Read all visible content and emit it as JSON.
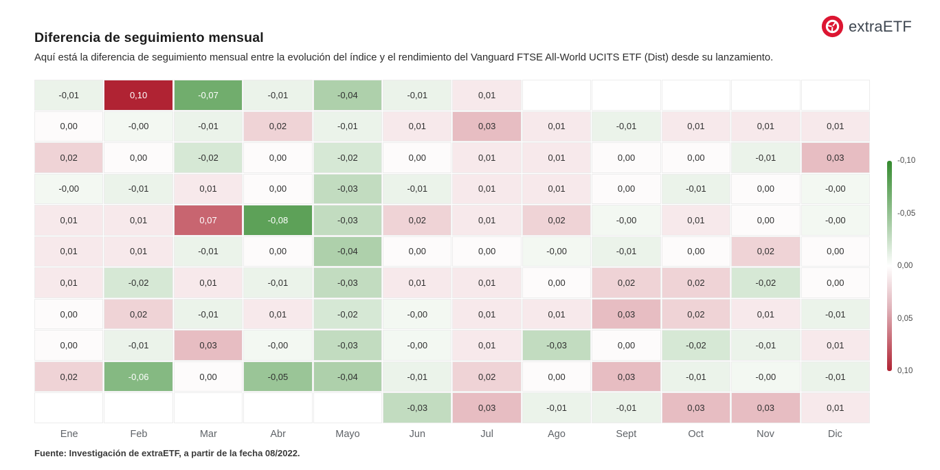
{
  "header": {
    "title": "Diferencia de seguimiento mensual",
    "subtitle": "Aquí está la diferencia de seguimiento mensual entre la evolución del índice y el rendimiento del Vanguard FTSE All-World UCITS ETF (Dist) desde su lanzamiento.",
    "logo_text": "extraETF"
  },
  "footer": {
    "source": "Fuente: Investigación de extraETF, a partir de la fecha 08/2022."
  },
  "colors": {
    "brand_red": "#dc1632",
    "logo_text_color": "#3e4650",
    "cell_border": "#ececec",
    "cell_text": "#2f2f2f",
    "axis_label": "#5f6368"
  },
  "chart_data": {
    "type": "heatmap",
    "title": "Diferencia de seguimiento mensual",
    "xlabel": "",
    "ylabel": "",
    "grid": "on",
    "legend_position": "right",
    "categories_x": [
      "Ene",
      "Feb",
      "Mar",
      "Abr",
      "Mayo",
      "Jun",
      "Jul",
      "Ago",
      "Sept",
      "Oct",
      "Nov",
      "Dic"
    ],
    "rows": [
      [
        "-0,01",
        "0,10",
        "-0,07",
        "-0,01",
        "-0,04",
        "-0,01",
        "0,01",
        null,
        null,
        null,
        null,
        null
      ],
      [
        "0,00",
        "-0,00",
        "-0,01",
        "0,02",
        "-0,01",
        "0,01",
        "0,03",
        "0,01",
        "-0,01",
        "0,01",
        "0,01",
        "0,01"
      ],
      [
        "0,02",
        "0,00",
        "-0,02",
        "0,00",
        "-0,02",
        "0,00",
        "0,01",
        "0,01",
        "0,00",
        "0,00",
        "-0,01",
        "0,03"
      ],
      [
        "-0,00",
        "-0,01",
        "0,01",
        "0,00",
        "-0,03",
        "-0,01",
        "0,01",
        "0,01",
        "0,00",
        "-0,01",
        "0,00",
        "-0,00"
      ],
      [
        "0,01",
        "0,01",
        "0,07",
        "-0,08",
        "-0,03",
        "0,02",
        "0,01",
        "0,02",
        "-0,00",
        "0,01",
        "0,00",
        "-0,00"
      ],
      [
        "0,01",
        "0,01",
        "-0,01",
        "0,00",
        "-0,04",
        "0,00",
        "0,00",
        "-0,00",
        "-0,01",
        "0,00",
        "0,02",
        "0,00"
      ],
      [
        "0,01",
        "-0,02",
        "0,01",
        "-0,01",
        "-0,03",
        "0,01",
        "0,01",
        "0,00",
        "0,02",
        "0,02",
        "-0,02",
        "0,00"
      ],
      [
        "0,00",
        "0,02",
        "-0,01",
        "0,01",
        "-0,02",
        "-0,00",
        "0,01",
        "0,01",
        "0,03",
        "0,02",
        "0,01",
        "-0,01"
      ],
      [
        "0,00",
        "-0,01",
        "0,03",
        "-0,00",
        "-0,03",
        "-0,00",
        "0,01",
        "-0,03",
        "0,00",
        "-0,02",
        "-0,01",
        "0,01"
      ],
      [
        "0,02",
        "-0,06",
        "0,00",
        "-0,05",
        "-0,04",
        "-0,01",
        "0,02",
        "0,00",
        "0,03",
        "-0,01",
        "-0,00",
        "-0,01"
      ],
      [
        null,
        null,
        null,
        null,
        null,
        "-0,03",
        "0,03",
        "-0,01",
        "-0,01",
        "0,03",
        "0,03",
        "0,01"
      ]
    ],
    "colorscale": {
      "min": -0.1,
      "max": 0.1,
      "negative_color": "#348a2e",
      "mid_color": "#ffffff",
      "positive_color": "#b02333",
      "legend_labels": [
        "-0,10",
        "-0,05",
        "0,00",
        "0,05",
        "0,10"
      ]
    }
  }
}
